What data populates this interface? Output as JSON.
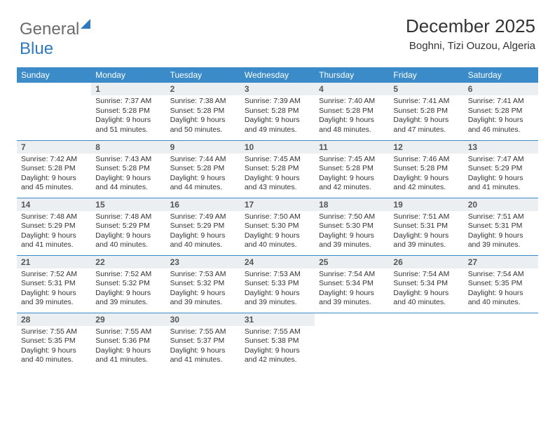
{
  "logo": {
    "part1": "General",
    "part2": "Blue"
  },
  "header": {
    "month": "December 2025",
    "location": "Boghni, Tizi Ouzou, Algeria"
  },
  "weekdays": [
    "Sunday",
    "Monday",
    "Tuesday",
    "Wednesday",
    "Thursday",
    "Friday",
    "Saturday"
  ],
  "colors": {
    "header_bg": "#3b8bc8",
    "daynum_bg": "#eceff1",
    "row_border": "#3b8bc8"
  },
  "start_offset": 1,
  "days": [
    {
      "n": 1,
      "sr": "7:37 AM",
      "ss": "5:28 PM",
      "dl": "9 hours and 51 minutes."
    },
    {
      "n": 2,
      "sr": "7:38 AM",
      "ss": "5:28 PM",
      "dl": "9 hours and 50 minutes."
    },
    {
      "n": 3,
      "sr": "7:39 AM",
      "ss": "5:28 PM",
      "dl": "9 hours and 49 minutes."
    },
    {
      "n": 4,
      "sr": "7:40 AM",
      "ss": "5:28 PM",
      "dl": "9 hours and 48 minutes."
    },
    {
      "n": 5,
      "sr": "7:41 AM",
      "ss": "5:28 PM",
      "dl": "9 hours and 47 minutes."
    },
    {
      "n": 6,
      "sr": "7:41 AM",
      "ss": "5:28 PM",
      "dl": "9 hours and 46 minutes."
    },
    {
      "n": 7,
      "sr": "7:42 AM",
      "ss": "5:28 PM",
      "dl": "9 hours and 45 minutes."
    },
    {
      "n": 8,
      "sr": "7:43 AM",
      "ss": "5:28 PM",
      "dl": "9 hours and 44 minutes."
    },
    {
      "n": 9,
      "sr": "7:44 AM",
      "ss": "5:28 PM",
      "dl": "9 hours and 44 minutes."
    },
    {
      "n": 10,
      "sr": "7:45 AM",
      "ss": "5:28 PM",
      "dl": "9 hours and 43 minutes."
    },
    {
      "n": 11,
      "sr": "7:45 AM",
      "ss": "5:28 PM",
      "dl": "9 hours and 42 minutes."
    },
    {
      "n": 12,
      "sr": "7:46 AM",
      "ss": "5:28 PM",
      "dl": "9 hours and 42 minutes."
    },
    {
      "n": 13,
      "sr": "7:47 AM",
      "ss": "5:29 PM",
      "dl": "9 hours and 41 minutes."
    },
    {
      "n": 14,
      "sr": "7:48 AM",
      "ss": "5:29 PM",
      "dl": "9 hours and 41 minutes."
    },
    {
      "n": 15,
      "sr": "7:48 AM",
      "ss": "5:29 PM",
      "dl": "9 hours and 40 minutes."
    },
    {
      "n": 16,
      "sr": "7:49 AM",
      "ss": "5:29 PM",
      "dl": "9 hours and 40 minutes."
    },
    {
      "n": 17,
      "sr": "7:50 AM",
      "ss": "5:30 PM",
      "dl": "9 hours and 40 minutes."
    },
    {
      "n": 18,
      "sr": "7:50 AM",
      "ss": "5:30 PM",
      "dl": "9 hours and 39 minutes."
    },
    {
      "n": 19,
      "sr": "7:51 AM",
      "ss": "5:31 PM",
      "dl": "9 hours and 39 minutes."
    },
    {
      "n": 20,
      "sr": "7:51 AM",
      "ss": "5:31 PM",
      "dl": "9 hours and 39 minutes."
    },
    {
      "n": 21,
      "sr": "7:52 AM",
      "ss": "5:31 PM",
      "dl": "9 hours and 39 minutes."
    },
    {
      "n": 22,
      "sr": "7:52 AM",
      "ss": "5:32 PM",
      "dl": "9 hours and 39 minutes."
    },
    {
      "n": 23,
      "sr": "7:53 AM",
      "ss": "5:32 PM",
      "dl": "9 hours and 39 minutes."
    },
    {
      "n": 24,
      "sr": "7:53 AM",
      "ss": "5:33 PM",
      "dl": "9 hours and 39 minutes."
    },
    {
      "n": 25,
      "sr": "7:54 AM",
      "ss": "5:34 PM",
      "dl": "9 hours and 39 minutes."
    },
    {
      "n": 26,
      "sr": "7:54 AM",
      "ss": "5:34 PM",
      "dl": "9 hours and 40 minutes."
    },
    {
      "n": 27,
      "sr": "7:54 AM",
      "ss": "5:35 PM",
      "dl": "9 hours and 40 minutes."
    },
    {
      "n": 28,
      "sr": "7:55 AM",
      "ss": "5:35 PM",
      "dl": "9 hours and 40 minutes."
    },
    {
      "n": 29,
      "sr": "7:55 AM",
      "ss": "5:36 PM",
      "dl": "9 hours and 41 minutes."
    },
    {
      "n": 30,
      "sr": "7:55 AM",
      "ss": "5:37 PM",
      "dl": "9 hours and 41 minutes."
    },
    {
      "n": 31,
      "sr": "7:55 AM",
      "ss": "5:38 PM",
      "dl": "9 hours and 42 minutes."
    }
  ],
  "labels": {
    "sunrise": "Sunrise:",
    "sunset": "Sunset:",
    "daylight": "Daylight:"
  }
}
